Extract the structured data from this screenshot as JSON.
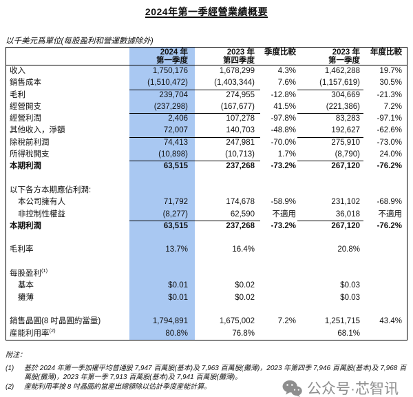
{
  "title": "2024年第一季經營業績概要",
  "units_note": "以千美元爲單位(每股盈利和營運數據除外)",
  "colors": {
    "highlight_column": "#a9c8f2",
    "border": "#000000",
    "watermark_gray": "#8e8e8e"
  },
  "table": {
    "headers": [
      {
        "line1": "",
        "line2": ""
      },
      {
        "line1": "2024 年",
        "line2": "第一季度"
      },
      {
        "line1": "2023 年",
        "line2": "第四季度"
      },
      {
        "line1": "季度比較",
        "line2": ""
      },
      {
        "line1": "2023 年",
        "line2": "第一季度"
      },
      {
        "line1": "年度比較",
        "line2": ""
      }
    ],
    "rows": [
      {
        "label": "收入",
        "values": [
          "1,750,176",
          "1,678,299",
          "4.3%",
          "1,462,288",
          "19.7%"
        ]
      },
      {
        "label": "銷售成本",
        "values": [
          "(1,510,472)",
          "(1,403,344)",
          "7.6%",
          "(1,157,619)",
          "30.5%"
        ],
        "rule_below": true
      },
      {
        "label": "毛利",
        "values": [
          "239,704",
          "274,955",
          "-12.8%",
          "304,669",
          "-21.3%"
        ]
      },
      {
        "label": "經營開支",
        "values": [
          "(237,298)",
          "(167,677)",
          "41.5%",
          "(221,386)",
          "7.2%"
        ],
        "rule_below": true
      },
      {
        "label": "經營利潤",
        "values": [
          "2,406",
          "107,278",
          "-97.8%",
          "83,283",
          "-97.1%"
        ]
      },
      {
        "label": "其他收入，淨額",
        "values": [
          "72,007",
          "140,703",
          "-48.8%",
          "192,627",
          "-62.6%"
        ],
        "rule_below": true
      },
      {
        "label": "除稅前利潤",
        "values": [
          "74,413",
          "247,981",
          "-70.0%",
          "275,910",
          "-73.0%"
        ]
      },
      {
        "label": "所得稅開支",
        "values": [
          "(10,898)",
          "(10,713)",
          "1.7%",
          "(8,790)",
          "24.0%"
        ],
        "rule_below": true
      },
      {
        "label": "本期利潤",
        "bold": true,
        "values": [
          "63,515",
          "237,268",
          "-73.2%",
          "267,120",
          "-76.2%"
        ]
      },
      {
        "blank": true
      },
      {
        "label": "以下各方本期應佔利潤:",
        "values": [
          "",
          "",
          "",
          "",
          ""
        ]
      },
      {
        "label": "本公司擁有人",
        "indent": true,
        "values": [
          "71,792",
          "174,678",
          "-58.9%",
          "231,102",
          "-68.9%"
        ]
      },
      {
        "label": "非控制性權益",
        "indent": true,
        "values": [
          "(8,277)",
          "62,590",
          "不適用",
          "36,018",
          "不適用"
        ],
        "rule_below": true
      },
      {
        "label": "本期利潤",
        "bold": true,
        "values": [
          "63,515",
          "237,268",
          "-73.2%",
          "267,120",
          "-76.2%"
        ]
      },
      {
        "blank": true
      },
      {
        "label": "毛利率",
        "values": [
          "13.7%",
          "16.4%",
          "",
          "20.8%",
          ""
        ]
      },
      {
        "blank": true
      },
      {
        "label": "每股盈利",
        "sup": "(1)",
        "values": [
          "",
          "",
          "",
          "",
          ""
        ]
      },
      {
        "label": "基本",
        "indent": true,
        "values": [
          "$0.01",
          "$0.02",
          "",
          "$0.03",
          ""
        ]
      },
      {
        "label": "攤薄",
        "indent": true,
        "values": [
          "$0.01",
          "$0.02",
          "",
          "$0.03",
          ""
        ]
      },
      {
        "blank": true
      },
      {
        "label": "銷售晶圓(8 吋晶圓約當量)",
        "values": [
          "1,794,891",
          "1,675,002",
          "7.2%",
          "1,251,715",
          "43.4%"
        ]
      },
      {
        "label": "産能利用率",
        "sup": "(2)",
        "values": [
          "80.8%",
          "76.8%",
          "",
          "68.1%",
          ""
        ]
      }
    ]
  },
  "footnotes": {
    "heading": "附注：",
    "items": [
      {
        "num": "(1)",
        "text": "基於 2024 年第一季加權平均普通股 7,947 百萬股(基本)及 7,963 百萬股(攤薄)，2023 年第四季 7,946 百萬股(基本)及 7,968 百萬股(攤薄)，2023 年第一季 7,913 百萬股(基本)及 7,941 百萬股(攤薄)。"
      },
      {
        "num": "(2)",
        "text": "産能利用率按 8 吋晶圓約當産出總額除以估計季度産能計算。"
      }
    ]
  },
  "watermark": {
    "icon": "wechat-icon",
    "text": "公众号·芯智讯"
  }
}
